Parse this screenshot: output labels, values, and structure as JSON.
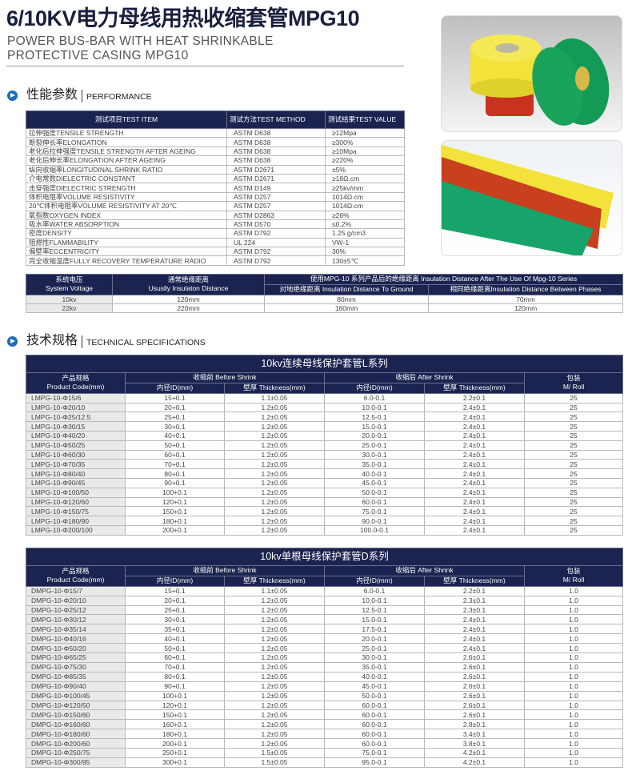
{
  "header": {
    "title": "6/10KV电力母线用热收缩套管MPG10",
    "subtitle_line1": "POWER BUS-BAR WITH HEAT SHRINKABLE",
    "subtitle_line2": "PROTECTIVE CASING MPG10"
  },
  "performance": {
    "section_cn": "性能参数",
    "section_en": "PERFORMANCE",
    "columns": [
      "测试项目TEST ITEM",
      "测试方法TEST METHOD",
      "测试结果TEST VALUE"
    ],
    "rows": [
      [
        "拉伸强度TENSILE STRENGTH",
        "ASTM D638",
        "≥12Mpa"
      ],
      [
        "断裂伸长率ELONGATION",
        "ASTM D638",
        "≥300%"
      ],
      [
        "老化后拉伸强度TENSILE STRENGTH AFTER AGEING",
        "ASTM D638",
        "≥10Mpa"
      ],
      [
        "老化后伸长率ELONGATION AFTER AGEING",
        "ASTM D638",
        "≥220%"
      ],
      [
        "纵向收缩率LONGITUDINAL SHRINK RATIO",
        "ASTM D2671",
        "±5%"
      ],
      [
        "介电常数DIELECTRIC CONSTANT",
        "ASTM D2671",
        "≥18Ω.cm"
      ],
      [
        "击穿强度DIELECTRIC STRENGTH",
        "ASTM D149",
        "≥25kv/mm"
      ],
      [
        "体积电阻率VOLUME RESISTIVITY",
        "ASTM D257",
        "1014Ω.cm"
      ],
      [
        "20℃体积电阻率VOLUME RESISTIVITY AT 20℃",
        "ASTM D257",
        "1014Ω.cm"
      ],
      [
        "氧指数OXYGEN INDEX",
        "ASTM D2863",
        "≥26%"
      ],
      [
        "吸水率WATER ABSORPTION",
        "ASTM D570",
        "≤0.2%"
      ],
      [
        "密度DENSITY",
        "ASTM D792",
        "1.25 g/cm3"
      ],
      [
        "阻燃性FLAMMABILITY",
        "UL 224",
        "VW-1"
      ],
      [
        "偏壁率ECCENTRICITY",
        "ASTM D792",
        "30%"
      ],
      [
        "完全收缩温度FULLY RECOVERY TEMPERATURE RADIO",
        "ASTM D792",
        "130±5℃"
      ]
    ]
  },
  "insulation": {
    "h_voltage_cn": "系统电压",
    "h_voltage_en": "System Voltage",
    "h_usual_cn": "通常绝缘距离",
    "h_usual_en": "Ususlly Insulaton Distance",
    "h_after": "使用MPG-10 系列产品后的绝缘距离 Insulation Distance After The Use Of Mpg-10 Series",
    "h_ground": "对地绝缘距离 Insulation Distance To Ground",
    "h_phases": "相同绝缘距离Insulation Distance Between Phases",
    "rows": [
      [
        "10kv",
        "120mm",
        "80mm",
        "70mm"
      ],
      [
        "22kv",
        "220mm",
        "160mm",
        "120mm"
      ]
    ]
  },
  "technical": {
    "section_cn": "技术规格",
    "section_en": "TECHNICAL SPECIFICATIONS"
  },
  "spec_headers": {
    "code_cn": "产品规格",
    "code_en": "Product Code(mm)",
    "before": "收缩前 Before Shrink",
    "after": "收缩后 After Shrink",
    "id": "内径ID(mm)",
    "thickness": "壁厚 Thickness(mm)",
    "pack_cn": "包装",
    "pack_en": "M/ Roll"
  },
  "l_series": {
    "title": "10kv连续母线保护套管L系列",
    "rows": [
      [
        "LMPG-10-Φ15/6",
        "15+0.1",
        "1.1±0.05",
        "6.0-0.1",
        "2.2±0.1",
        "25"
      ],
      [
        "LMPG-10-Φ20/10",
        "20+0.1",
        "1.2±0.05",
        "10.0-0.1",
        "2.4±0.1",
        "25"
      ],
      [
        "LMPG-10-Φ25/12.5",
        "25+0.1",
        "1.2±0.05",
        "12.5-0.1",
        "2.4±0.1",
        "25"
      ],
      [
        "LMPG-10-Φ30/15",
        "30+0.1",
        "1.2±0.05",
        "15.0-0.1",
        "2.4±0.1",
        "25"
      ],
      [
        "LMPG-10-Φ40/20",
        "40+0.1",
        "1.2±0.05",
        "20.0-0.1",
        "2.4±0.1",
        "25"
      ],
      [
        "LMPG-10-Φ50/25",
        "50+0.1",
        "1.2±0.05",
        "25.0-0.1",
        "2.4±0.1",
        "25"
      ],
      [
        "LMPG-10-Φ60/30",
        "60+0.1",
        "1.2±0.05",
        "30.0-0.1",
        "2.4±0.1",
        "25"
      ],
      [
        "LMPG-10-Φ70/35",
        "70+0.1",
        "1.2±0.05",
        "35.0-0.1",
        "2.4±0.1",
        "25"
      ],
      [
        "LMPG-10-Φ80/40",
        "80+0.1",
        "1.2±0.05",
        "40.0-0.1",
        "2.4±0.1",
        "25"
      ],
      [
        "LMPG-10-Φ90/45",
        "90+0.1",
        "1.2±0.05",
        "45.0-0.1",
        "2.4±0.1",
        "25"
      ],
      [
        "LMPG-10-Φ100/50",
        "100+0.1",
        "1.2±0.05",
        "50.0-0.1",
        "2.4±0.1",
        "25"
      ],
      [
        "LMPG-10-Φ120/60",
        "120+0.1",
        "1.2±0.05",
        "60.0-0.1",
        "2.4±0.1",
        "25"
      ],
      [
        "LMPG-10-Φ150/75",
        "150+0.1",
        "1.2±0.05",
        "75.0-0.1",
        "2.4±0.1",
        "25"
      ],
      [
        "LMPG-10-Φ180/90",
        "180+0.1",
        "1.2±0.05",
        "90.0-0.1",
        "2.4±0.1",
        "25"
      ],
      [
        "LMPG-10-Φ200/100",
        "200+0.1",
        "1.2±0.05",
        "100.0-0.1",
        "2.4±0.1",
        "25"
      ]
    ]
  },
  "d_series": {
    "title": "10kv单根母线保护套管D系列",
    "rows": [
      [
        "DMPG-10-Φ15/7",
        "15+0.1",
        "1.1±0.05",
        "6.0-0.1",
        "2.2±0.1",
        "1.0"
      ],
      [
        "DMPG-10-Φ20/10",
        "20+0.1",
        "1.2±0.05",
        "10.0-0.1",
        "2.3±0.1",
        "1.0"
      ],
      [
        "DMPG-10-Φ25/12",
        "25+0.1",
        "1.2±0.05",
        "12.5-0.1",
        "2.3±0.1",
        "1.0"
      ],
      [
        "DMPG-10-Φ30/12",
        "30+0.1",
        "1.2±0.05",
        "15.0-0.1",
        "2.4±0.1",
        "1.0"
      ],
      [
        "DMPG-10-Φ35/14",
        "35+0.1",
        "1.2±0.05",
        "17.5-0.1",
        "2.4±0.1",
        "1.0"
      ],
      [
        "DMPG-10-Φ40/16",
        "40+0.1",
        "1.2±0.05",
        "20.0-0.1",
        "2.4±0.1",
        "1.0"
      ],
      [
        "DMPG-10-Φ50/20",
        "50+0.1",
        "1.2±0.05",
        "25.0-0.1",
        "2.4±0.1",
        "1.0"
      ],
      [
        "DMPG-10-Φ65/25",
        "60+0.1",
        "1.2±0.05",
        "30.0-0.1",
        "2.6±0.1",
        "1.0"
      ],
      [
        "DMPG-10-Φ75/30",
        "70+0.1",
        "1.2±0.05",
        "35.0-0.1",
        "2.6±0.1",
        "1.0"
      ],
      [
        "DMPG-10-Φ85/35",
        "80+0.1",
        "1.2±0.05",
        "40.0-0.1",
        "2.6±0.1",
        "1.0"
      ],
      [
        "DMPG-10-Φ90/40",
        "90+0.1",
        "1.2±0.05",
        "45.0-0.1",
        "2.6±0.1",
        "1.0"
      ],
      [
        "DMPG-10-Φ100/45",
        "100+0.1",
        "1.2±0.05",
        "50.0-0.1",
        "2.6±0.1",
        "1.0"
      ],
      [
        "DMPG-10-Φ120/50",
        "120+0.1",
        "1.2±0.05",
        "60.0-0.1",
        "2.6±0.1",
        "1.0"
      ],
      [
        "DMPG-10-Φ150/60",
        "150+0.1",
        "1.2±0.05",
        "60.0-0.1",
        "2.6±0.1",
        "1.0"
      ],
      [
        "DMPG-10-Φ160/60",
        "160+0.1",
        "1.2±0.05",
        "60.0-0.1",
        "2.8±0.1",
        "1.0"
      ],
      [
        "DMPG-10-Φ180/60",
        "180+0.1",
        "1.2±0.05",
        "60.0-0.1",
        "3.4±0.1",
        "1.0"
      ],
      [
        "DMPG-10-Φ200/60",
        "200+0.1",
        "1.2±0.05",
        "60.0-0.1",
        "3.8±0.1",
        "1.0"
      ],
      [
        "DMPG-10-Φ250/75",
        "250+0.1",
        "1.5±0.05",
        "75.0-0.1",
        "4.2±0.1",
        "1.0"
      ],
      [
        "DMPG-10-Φ300/95",
        "300+0.1",
        "1.5±0.05",
        "95.0-0.1",
        "4.2±0.1",
        "1.0"
      ]
    ]
  },
  "colors": {
    "header_navy": "#1b2350",
    "yellow": "#f2e23a",
    "red": "#c8321e",
    "green": "#1aa35a"
  }
}
